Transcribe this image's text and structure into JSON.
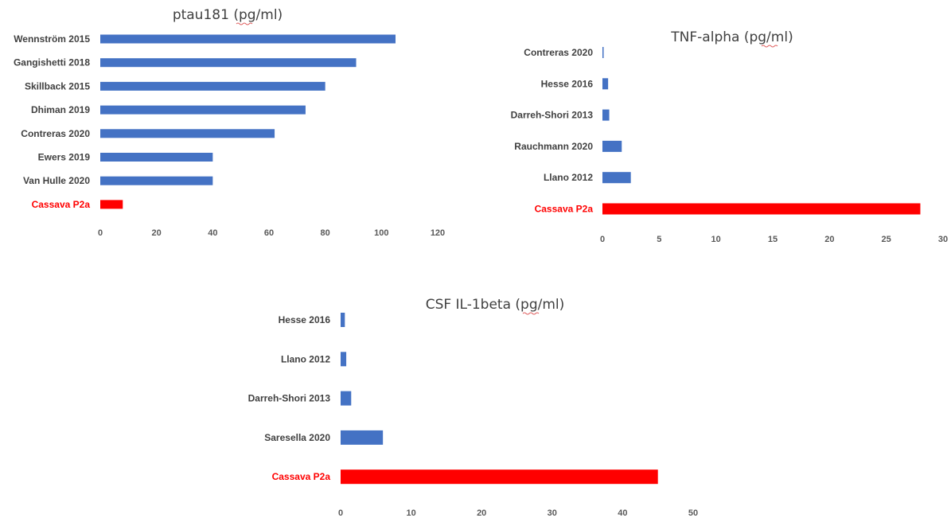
{
  "colors": {
    "bar": "#4472C4",
    "highlight": "#FF0000",
    "label": "#404040",
    "highlight_label": "#FF0000"
  },
  "chart_data": [
    {
      "type": "bar",
      "orientation": "horizontal",
      "title": "ptau181 (pg/ml)",
      "categories": [
        "Wennström 2015",
        "Gangishetti 2018",
        "Skillback 2015",
        "Dhiman 2019",
        "Contreras 2020",
        "Ewers 2019",
        "Van Hulle 2020",
        "Cassava P2a"
      ],
      "values": [
        105,
        91,
        80,
        73,
        62,
        40,
        40,
        8
      ],
      "highlight": "Cassava P2a",
      "xlim": [
        0,
        120
      ],
      "xticks": [
        0,
        20,
        40,
        60,
        80,
        100,
        120
      ],
      "grid": false,
      "legend": false
    },
    {
      "type": "bar",
      "orientation": "horizontal",
      "title": "TNF-alpha (pg/ml)",
      "categories": [
        "Contreras 2020",
        "Hesse 2016",
        "Darreh-Shori 2013",
        "Rauchmann 2020",
        "Llano 2012",
        "Cassava P2a"
      ],
      "values": [
        0.1,
        0.5,
        0.6,
        1.7,
        2.5,
        28
      ],
      "highlight": "Cassava P2a",
      "xlim": [
        0,
        30
      ],
      "xticks": [
        0,
        5,
        10,
        15,
        20,
        25,
        30
      ],
      "grid": false,
      "legend": false
    },
    {
      "type": "bar",
      "orientation": "horizontal",
      "title": "CSF IL-1beta (pg/ml)",
      "categories": [
        "Hesse 2016",
        "Llano 2012",
        "Darreh-Shori 2013",
        "Saresella 2020",
        "Cassava P2a"
      ],
      "values": [
        0.6,
        0.8,
        1.5,
        6,
        45
      ],
      "highlight": "Cassava P2a",
      "xlim": [
        0,
        50
      ],
      "xticks": [
        0,
        10,
        20,
        30,
        40,
        50
      ],
      "grid": false,
      "legend": false
    }
  ]
}
